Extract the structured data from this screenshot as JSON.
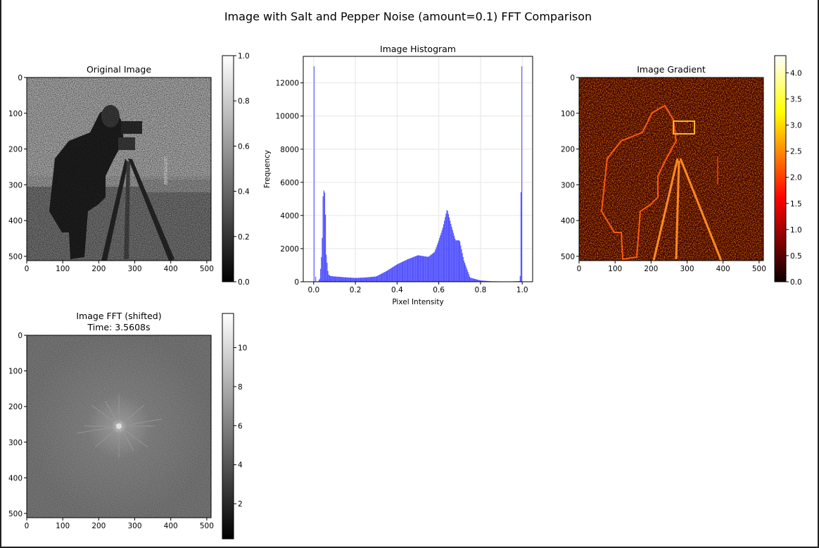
{
  "figure": {
    "suptitle": "Image with Salt and Pepper Noise (amount=0.1) FFT Comparison"
  },
  "panels": {
    "original": {
      "title": "Original Image",
      "x_ticks": [
        "0",
        "100",
        "200",
        "300",
        "400",
        "500"
      ],
      "y_ticks": [
        "0",
        "100",
        "200",
        "300",
        "400",
        "500"
      ],
      "colormap": "gray",
      "colorbar_ticks": [
        "0.0",
        "0.2",
        "0.4",
        "0.6",
        "0.8",
        "1.0"
      ]
    },
    "fft": {
      "title_line1": "Image FFT (shifted)",
      "title_line2": "Time: 3.5608s",
      "x_ticks": [
        "0",
        "100",
        "200",
        "300",
        "400",
        "500"
      ],
      "y_ticks": [
        "0",
        "100",
        "200",
        "300",
        "400",
        "500"
      ],
      "colormap": "gray",
      "colorbar_ticks": [
        "2",
        "4",
        "6",
        "8",
        "10"
      ]
    },
    "gradient": {
      "title": "Image Gradient",
      "x_ticks": [
        "0",
        "100",
        "200",
        "300",
        "400",
        "500"
      ],
      "y_ticks": [
        "0",
        "100",
        "200",
        "300",
        "400",
        "500"
      ],
      "colormap": "hot",
      "colorbar_ticks": [
        "0.0",
        "0.5",
        "1.0",
        "1.5",
        "2.0",
        "2.5",
        "3.0",
        "3.5",
        "4.0"
      ]
    }
  },
  "chart_data": {
    "type": "bar",
    "title": "Image Histogram",
    "xlabel": "Pixel Intensity",
    "ylabel": "Frequency",
    "xlim": [
      -0.05,
      1.05
    ],
    "ylim": [
      0,
      13600
    ],
    "x_ticks": [
      "0.0",
      "0.2",
      "0.4",
      "0.6",
      "0.8",
      "1.0"
    ],
    "y_ticks": [
      "0",
      "2000",
      "4000",
      "6000",
      "8000",
      "10000",
      "12000"
    ],
    "grid": true,
    "color": "#4040ff",
    "series": [
      {
        "x": [
          0.0,
          0.01,
          0.02,
          0.03,
          0.04,
          0.045,
          0.05,
          0.055,
          0.06,
          0.07,
          0.08,
          0.1,
          0.15,
          0.2,
          0.25,
          0.3,
          0.35,
          0.4,
          0.45,
          0.5,
          0.55,
          0.58,
          0.6,
          0.62,
          0.64,
          0.66,
          0.68,
          0.7,
          0.72,
          0.75,
          0.8,
          0.85,
          0.9,
          0.95,
          0.99,
          1.0
        ],
        "values": [
          13000,
          0,
          0,
          200,
          2000,
          5200,
          5600,
          5200,
          1700,
          450,
          350,
          320,
          270,
          230,
          260,
          320,
          650,
          1050,
          1350,
          1600,
          1500,
          1800,
          2500,
          3300,
          4400,
          3400,
          2500,
          2500,
          1300,
          250,
          80,
          30,
          20,
          20,
          40,
          13000
        ]
      }
    ]
  }
}
